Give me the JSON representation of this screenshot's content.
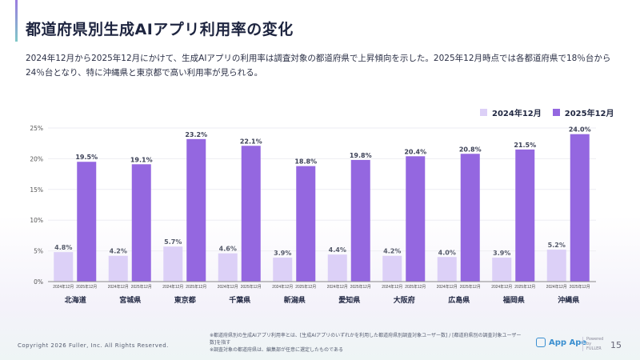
{
  "title": "都道府県別生成AIアプリ利用率の変化",
  "description": "2024年12月から2025年12月にかけて、生成AIアプリの利用率は調査対象の都道府県で上昇傾向を示した。2025年12月時点では各都道府県で18％台から24％台となり、特に沖縄県と東京都で高い利用率が見られる。",
  "chart_data": {
    "type": "bar",
    "categories": [
      "北海道",
      "宮城県",
      "東京都",
      "千葉県",
      "新潟県",
      "愛知県",
      "大阪府",
      "広島県",
      "福岡県",
      "沖縄県"
    ],
    "series": [
      {
        "name": "2024年12月",
        "color": "#dcd0f7",
        "values": [
          4.8,
          4.2,
          5.7,
          4.6,
          3.9,
          4.4,
          4.2,
          4.0,
          3.9,
          5.2
        ]
      },
      {
        "name": "2025年12月",
        "color": "#9467e0",
        "values": [
          19.5,
          19.1,
          23.2,
          22.1,
          18.8,
          19.8,
          20.4,
          20.8,
          21.5,
          24.0
        ]
      }
    ],
    "ylim": [
      0,
      25
    ],
    "yticks": [
      "0%",
      "5%",
      "10%",
      "15%",
      "20%",
      "25%"
    ],
    "grid": true,
    "legend": "top-right",
    "value_suffix": "%"
  },
  "footer": {
    "copyright": "Copyright 2026 Fuller, Inc. All Rights Reserved.",
    "notes": [
      "※都道府県別の生成AIアプリ利用率とは、[生成AIアプリのいずれかを利用した都道府県別調査対象ユーザー数] / [都道府県別の調査対象ユーザー数]を指す",
      "※調査対象の都道府県は、編集部が任意に選定したものである"
    ],
    "logo": "App Ape",
    "powered": "Powered by FULLER",
    "page": "15"
  }
}
